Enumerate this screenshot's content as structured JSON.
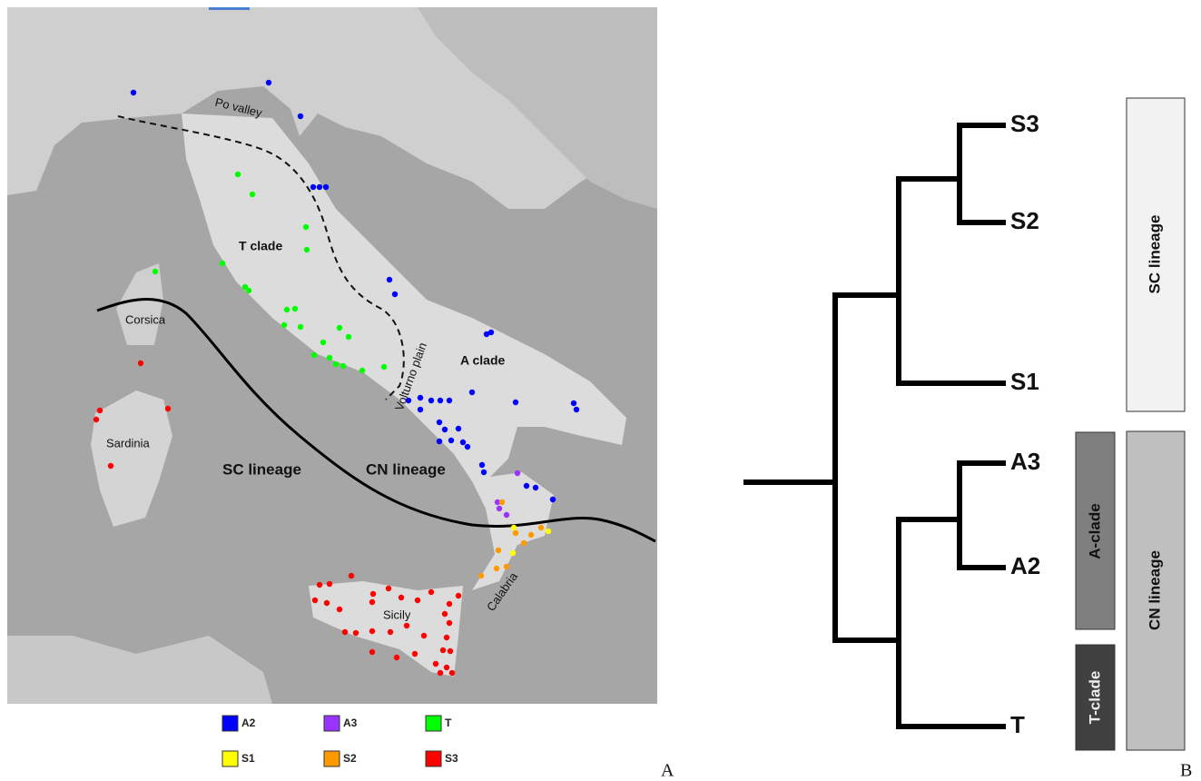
{
  "map": {
    "labels": {
      "po_valley": "Po valley",
      "t_clade": "T clade",
      "corsica": "Corsica",
      "a_clade": "A clade",
      "volturno_plain": "Volturno plain",
      "sardinia": "Sardinia",
      "sc_lineage": "SC lineage",
      "cn_lineage": "CN lineage",
      "calabria": "Calabria",
      "sicily": "Sicily"
    },
    "legend": [
      {
        "label": "A2",
        "color": "#0000ff"
      },
      {
        "label": "A3",
        "color": "#9933ff"
      },
      {
        "label": "T",
        "color": "#00ff00"
      },
      {
        "label": "S1",
        "color": "#ffff00"
      },
      {
        "label": "S2",
        "color": "#ff9900"
      },
      {
        "label": "S3",
        "color": "#ff0000"
      }
    ]
  },
  "tree": {
    "leaves": [
      "S3",
      "S2",
      "S1",
      "A3",
      "A2",
      "T"
    ],
    "groups": [
      "SC lineage",
      "CN lineage",
      "A-clade",
      "T-clade"
    ]
  },
  "panels": [
    "A",
    "B"
  ]
}
